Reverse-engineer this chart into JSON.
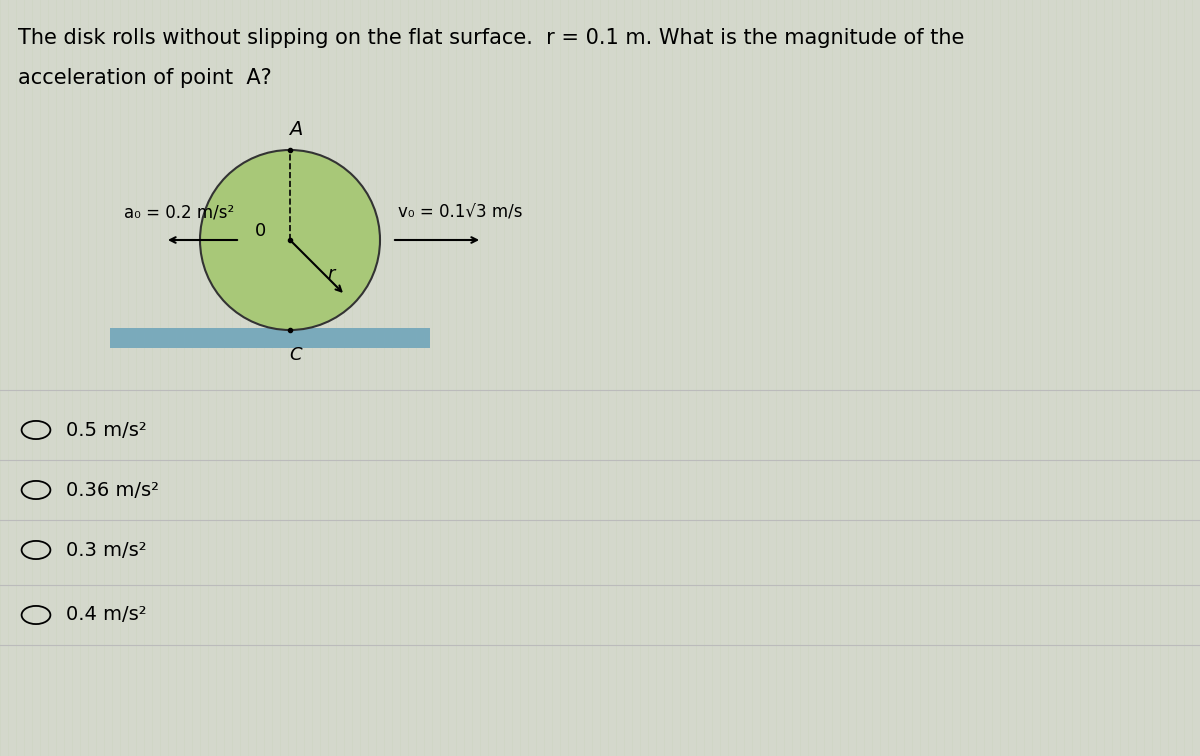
{
  "title_line1": "The disk rolls without slipping on the flat surface.  r = 0.1 m. What is the magnitude of the",
  "title_line2": "acceleration of point  A?",
  "background_color": "#d4d8cc",
  "disk_color": "#a8c878",
  "disk_outline_color": "#333333",
  "ground_color": "#7aaabb",
  "title_fontsize": 15,
  "label_fontsize": 13,
  "choice_fontsize": 14,
  "choices": [
    "0.5 m/s²",
    "0.36 m/s²",
    "0.3 m/s²",
    "0.4 m/s²"
  ],
  "ao_label": "a₀ = 0.2 m/s²",
  "vo_label": "v₀ = 0.1√3 m/s",
  "point_A_label": "A",
  "point_O_label": "0",
  "point_C_label": "C",
  "r_label": "r"
}
